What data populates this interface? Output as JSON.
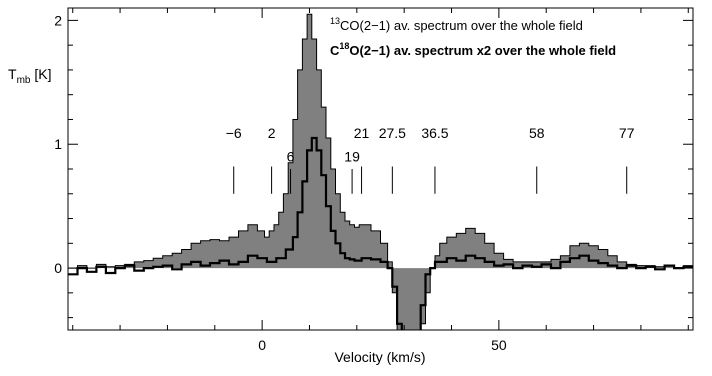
{
  "chart_data": {
    "type": "line",
    "xlabel": "Velocity (km/s)",
    "ylabel": "T_mb [K]",
    "ylabel_main": "T",
    "ylabel_sub": "mb",
    "ylabel_unit": " [K]",
    "xlim": [
      -41,
      91
    ],
    "ylim": [
      -0.5,
      2.1
    ],
    "x_ticks": [
      0,
      50
    ],
    "y_ticks": [
      0,
      1,
      2
    ],
    "colors": {
      "fill": "#808080",
      "line": "#000000"
    },
    "legend": {
      "placement": "top-right",
      "entries": [
        {
          "sup": "13",
          "text": "CO(2−1) av. spectrum over the whole field",
          "bold": false
        },
        {
          "pre": "C",
          "sup": "18",
          "text": "O(2−1) av. spectrum x2 over the whole field",
          "bold": true
        }
      ]
    },
    "markers": [
      {
        "label": "−6",
        "x": -6,
        "row": "high"
      },
      {
        "label": "2",
        "x": 2,
        "row": "high"
      },
      {
        "label": "6",
        "x": 6,
        "row": "low"
      },
      {
        "label": "19",
        "x": 19,
        "row": "low"
      },
      {
        "label": "21",
        "x": 21,
        "row": "high"
      },
      {
        "label": "27.5",
        "x": 27.5,
        "row": "high"
      },
      {
        "label": "36.5",
        "x": 36.5,
        "row": "high"
      },
      {
        "label": "58",
        "x": 58,
        "row": "high"
      },
      {
        "label": "77",
        "x": 77,
        "row": "high"
      }
    ],
    "series": [
      {
        "name": "13CO(2-1) av. spectrum over the whole field",
        "style": "filled-step",
        "x": [
          -40,
          -38,
          -36,
          -34,
          -32,
          -30,
          -28,
          -26,
          -24,
          -22,
          -20,
          -18,
          -16,
          -14,
          -12,
          -10,
          -8,
          -6,
          -4,
          -2,
          0,
          1,
          2,
          3,
          4,
          5,
          6,
          7,
          8,
          9,
          10,
          11,
          12,
          13,
          14,
          15,
          16,
          17,
          18,
          19,
          20,
          21,
          22,
          24,
          26,
          27,
          28,
          29,
          30,
          31,
          32,
          33,
          34,
          35,
          36,
          37,
          38,
          40,
          42,
          44,
          46,
          48,
          50,
          52,
          54,
          56,
          58,
          60,
          62,
          64,
          66,
          68,
          70,
          72,
          74,
          76,
          78,
          80,
          82,
          84,
          86,
          88,
          90
        ],
        "y": [
          0.0,
          0.02,
          0.0,
          0.03,
          0.01,
          0.02,
          0.03,
          0.05,
          0.06,
          0.08,
          0.1,
          0.12,
          0.15,
          0.2,
          0.22,
          0.23,
          0.22,
          0.25,
          0.3,
          0.35,
          0.3,
          0.25,
          0.3,
          0.35,
          0.45,
          0.6,
          0.85,
          1.2,
          1.6,
          1.85,
          2.05,
          1.85,
          1.6,
          1.3,
          1.05,
          0.8,
          0.6,
          0.45,
          0.38,
          0.35,
          0.33,
          0.35,
          0.35,
          0.3,
          0.2,
          0.05,
          -0.2,
          -0.5,
          -0.6,
          -0.5,
          -0.55,
          -0.6,
          -0.45,
          -0.2,
          0.0,
          0.1,
          0.2,
          0.25,
          0.28,
          0.32,
          0.28,
          0.2,
          0.12,
          0.07,
          0.05,
          0.05,
          0.05,
          0.05,
          0.07,
          0.1,
          0.18,
          0.2,
          0.18,
          0.15,
          0.1,
          0.05,
          0.03,
          0.02,
          0.02,
          0.01,
          0.02,
          0.0,
          0.02
        ]
      },
      {
        "name": "C18O(2-1) av. spectrum x2 over the whole field",
        "style": "step",
        "x": [
          -40,
          -38,
          -36,
          -34,
          -32,
          -30,
          -28,
          -26,
          -24,
          -22,
          -20,
          -18,
          -16,
          -14,
          -12,
          -10,
          -8,
          -6,
          -4,
          -2,
          0,
          2,
          4,
          6,
          7,
          8,
          9,
          10,
          11,
          12,
          13,
          14,
          15,
          16,
          17,
          18,
          19,
          20,
          22,
          24,
          26,
          27,
          28,
          29,
          30,
          31,
          32,
          33,
          34,
          35,
          36,
          37,
          38,
          40,
          42,
          44,
          46,
          48,
          50,
          52,
          54,
          56,
          58,
          60,
          62,
          64,
          66,
          68,
          70,
          72,
          74,
          76,
          78,
          80,
          82,
          84,
          86,
          88,
          90
        ],
        "y": [
          -0.05,
          0.0,
          -0.03,
          0.01,
          -0.04,
          0.0,
          0.02,
          -0.02,
          0.0,
          0.01,
          0.02,
          -0.01,
          0.03,
          0.05,
          0.02,
          0.04,
          0.06,
          0.03,
          0.05,
          0.1,
          0.08,
          0.05,
          0.08,
          0.15,
          0.25,
          0.45,
          0.7,
          0.95,
          1.05,
          0.95,
          0.75,
          0.5,
          0.3,
          0.2,
          0.12,
          0.08,
          0.07,
          0.06,
          0.08,
          0.07,
          0.05,
          0.0,
          -0.15,
          -0.45,
          -0.65,
          -0.55,
          -0.65,
          -0.6,
          -0.3,
          -0.05,
          0.0,
          0.05,
          0.05,
          0.08,
          0.06,
          0.1,
          0.08,
          0.05,
          0.02,
          0.03,
          0.0,
          0.02,
          0.01,
          0.03,
          0.0,
          0.05,
          0.08,
          0.1,
          0.06,
          0.04,
          0.02,
          0.0,
          0.02,
          0.0,
          0.01,
          -0.01,
          0.02,
          0.0,
          0.01
        ]
      }
    ]
  }
}
